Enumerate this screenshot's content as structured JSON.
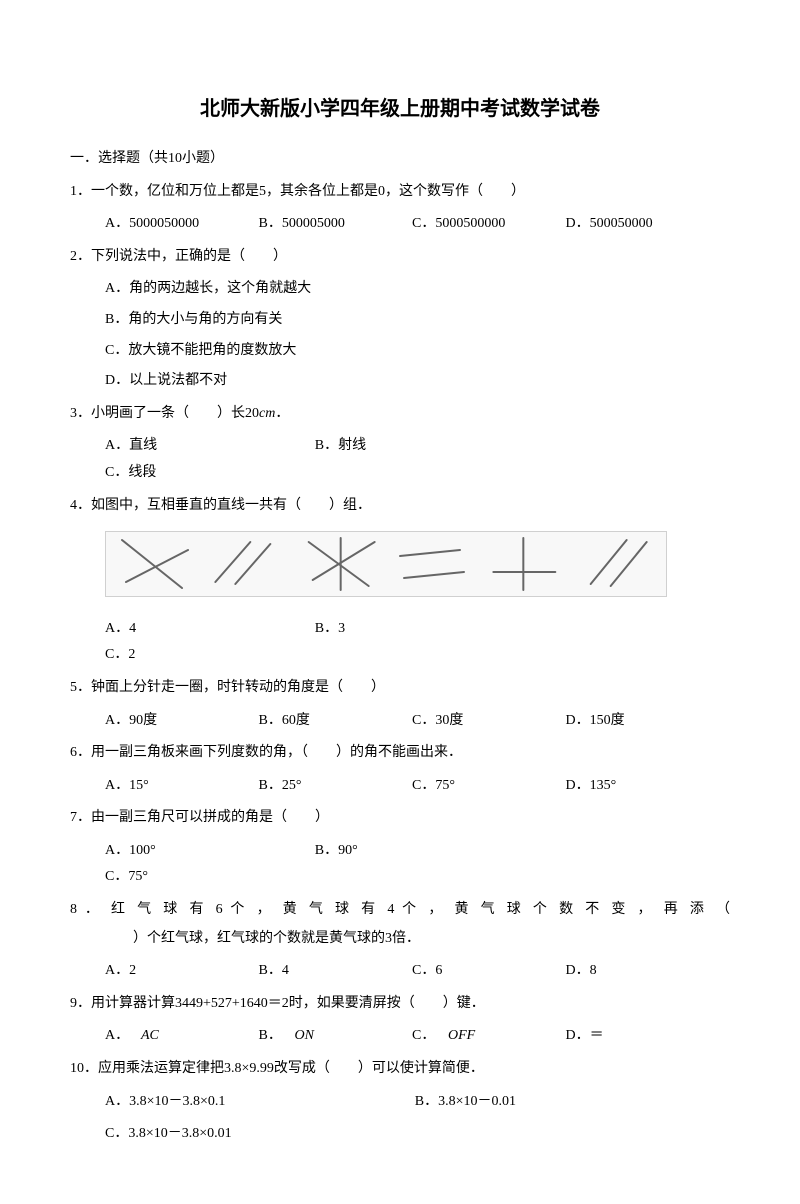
{
  "title": "北师大新版小学四年级上册期中考试数学试卷",
  "section1": {
    "heading": "一．选择题（共10小题）",
    "q1": {
      "stem": "1．一个数，亿位和万位上都是5，其余各位上都是0，这个数写作（　　）",
      "A": "A．5000050000",
      "B": "B．500005000",
      "C": "C．5000500000",
      "D": "D．500050000"
    },
    "q2": {
      "stem": "2．下列说法中，正确的是（　　）",
      "A": "A．角的两边越长，这个角就越大",
      "B": "B．角的大小与角的方向有关",
      "C": "C．放大镜不能把角的度数放大",
      "D": "D．以上说法都不对"
    },
    "q3": {
      "stem_a": "3．小明画了一条（　　）长20",
      "stem_cm": "cm",
      "stem_b": "．",
      "A": "A．直线",
      "B": "B．射线",
      "C": "C．线段"
    },
    "q4": {
      "stem": "4．如图中，互相垂直的直线一共有（　　）组．",
      "A": "A．4",
      "B": "B．3",
      "C": "C．2",
      "figure": {
        "type": "line-diagram",
        "stroke": "#666666",
        "stroke_width": 2,
        "groups": [
          {
            "lines": [
              [
                10,
                8,
                70,
                56
              ],
              [
                14,
                50,
                76,
                18
              ]
            ]
          },
          {
            "lines": [
              [
                10,
                50,
                45,
                10
              ],
              [
                30,
                52,
                65,
                12
              ]
            ]
          },
          {
            "lines": [
              [
                10,
                10,
                70,
                54
              ],
              [
                14,
                48,
                76,
                10
              ],
              [
                42,
                6,
                42,
                58
              ]
            ]
          },
          {
            "lines": [
              [
                8,
                24,
                68,
                18
              ],
              [
                12,
                46,
                72,
                40
              ]
            ]
          },
          {
            "lines": [
              [
                38,
                6,
                38,
                58
              ],
              [
                8,
                40,
                70,
                40
              ]
            ]
          },
          {
            "lines": [
              [
                12,
                52,
                48,
                8
              ],
              [
                32,
                54,
                68,
                10
              ]
            ]
          }
        ]
      }
    },
    "q5": {
      "stem": "5．钟面上分针走一圈，时针转动的角度是（　　）",
      "A": "A．90度",
      "B": "B．60度",
      "C": "C．30度",
      "D": "D．150度"
    },
    "q6": {
      "stem": "6．用一副三角板来画下列度数的角，（　　）的角不能画出来．",
      "A": "A．15°",
      "B": "B．25°",
      "C": "C．75°",
      "D": "D．135°"
    },
    "q7": {
      "stem": "7．由一副三角尺可以拼成的角是（　　）",
      "A": "A．100°",
      "B": "B．90°",
      "C": "C．75°"
    },
    "q8": {
      "stem_line1": "8 ． 红 气 球 有 6 个 ， 黄 气 球 有 4 个 ， 黄 气 球 个 数 不 变 ， 再 添 （",
      "stem_line2": "　　）个红气球，红气球的个数就是黄气球的3倍．",
      "A": "A．2",
      "B": "B．4",
      "C": "C．6",
      "D": "D．8"
    },
    "q9": {
      "stem": "9．用计算器计算3449+527+1640＝2时，如果要清屏按（　　）键．",
      "A_pre": "A．",
      "A_it": "AC",
      "B_pre": "B．",
      "B_it": "ON",
      "C_pre": "C．",
      "C_it": "OFF",
      "D": "D．＝"
    },
    "q10": {
      "stem": "10．应用乘法运算定律把3.8×9.99改写成（　　）可以使计算简便．",
      "A": "A．3.8×10－3.8×0.1",
      "B": "B．3.8×10－0.01",
      "C": "C．3.8×10－3.8×0.01"
    }
  }
}
